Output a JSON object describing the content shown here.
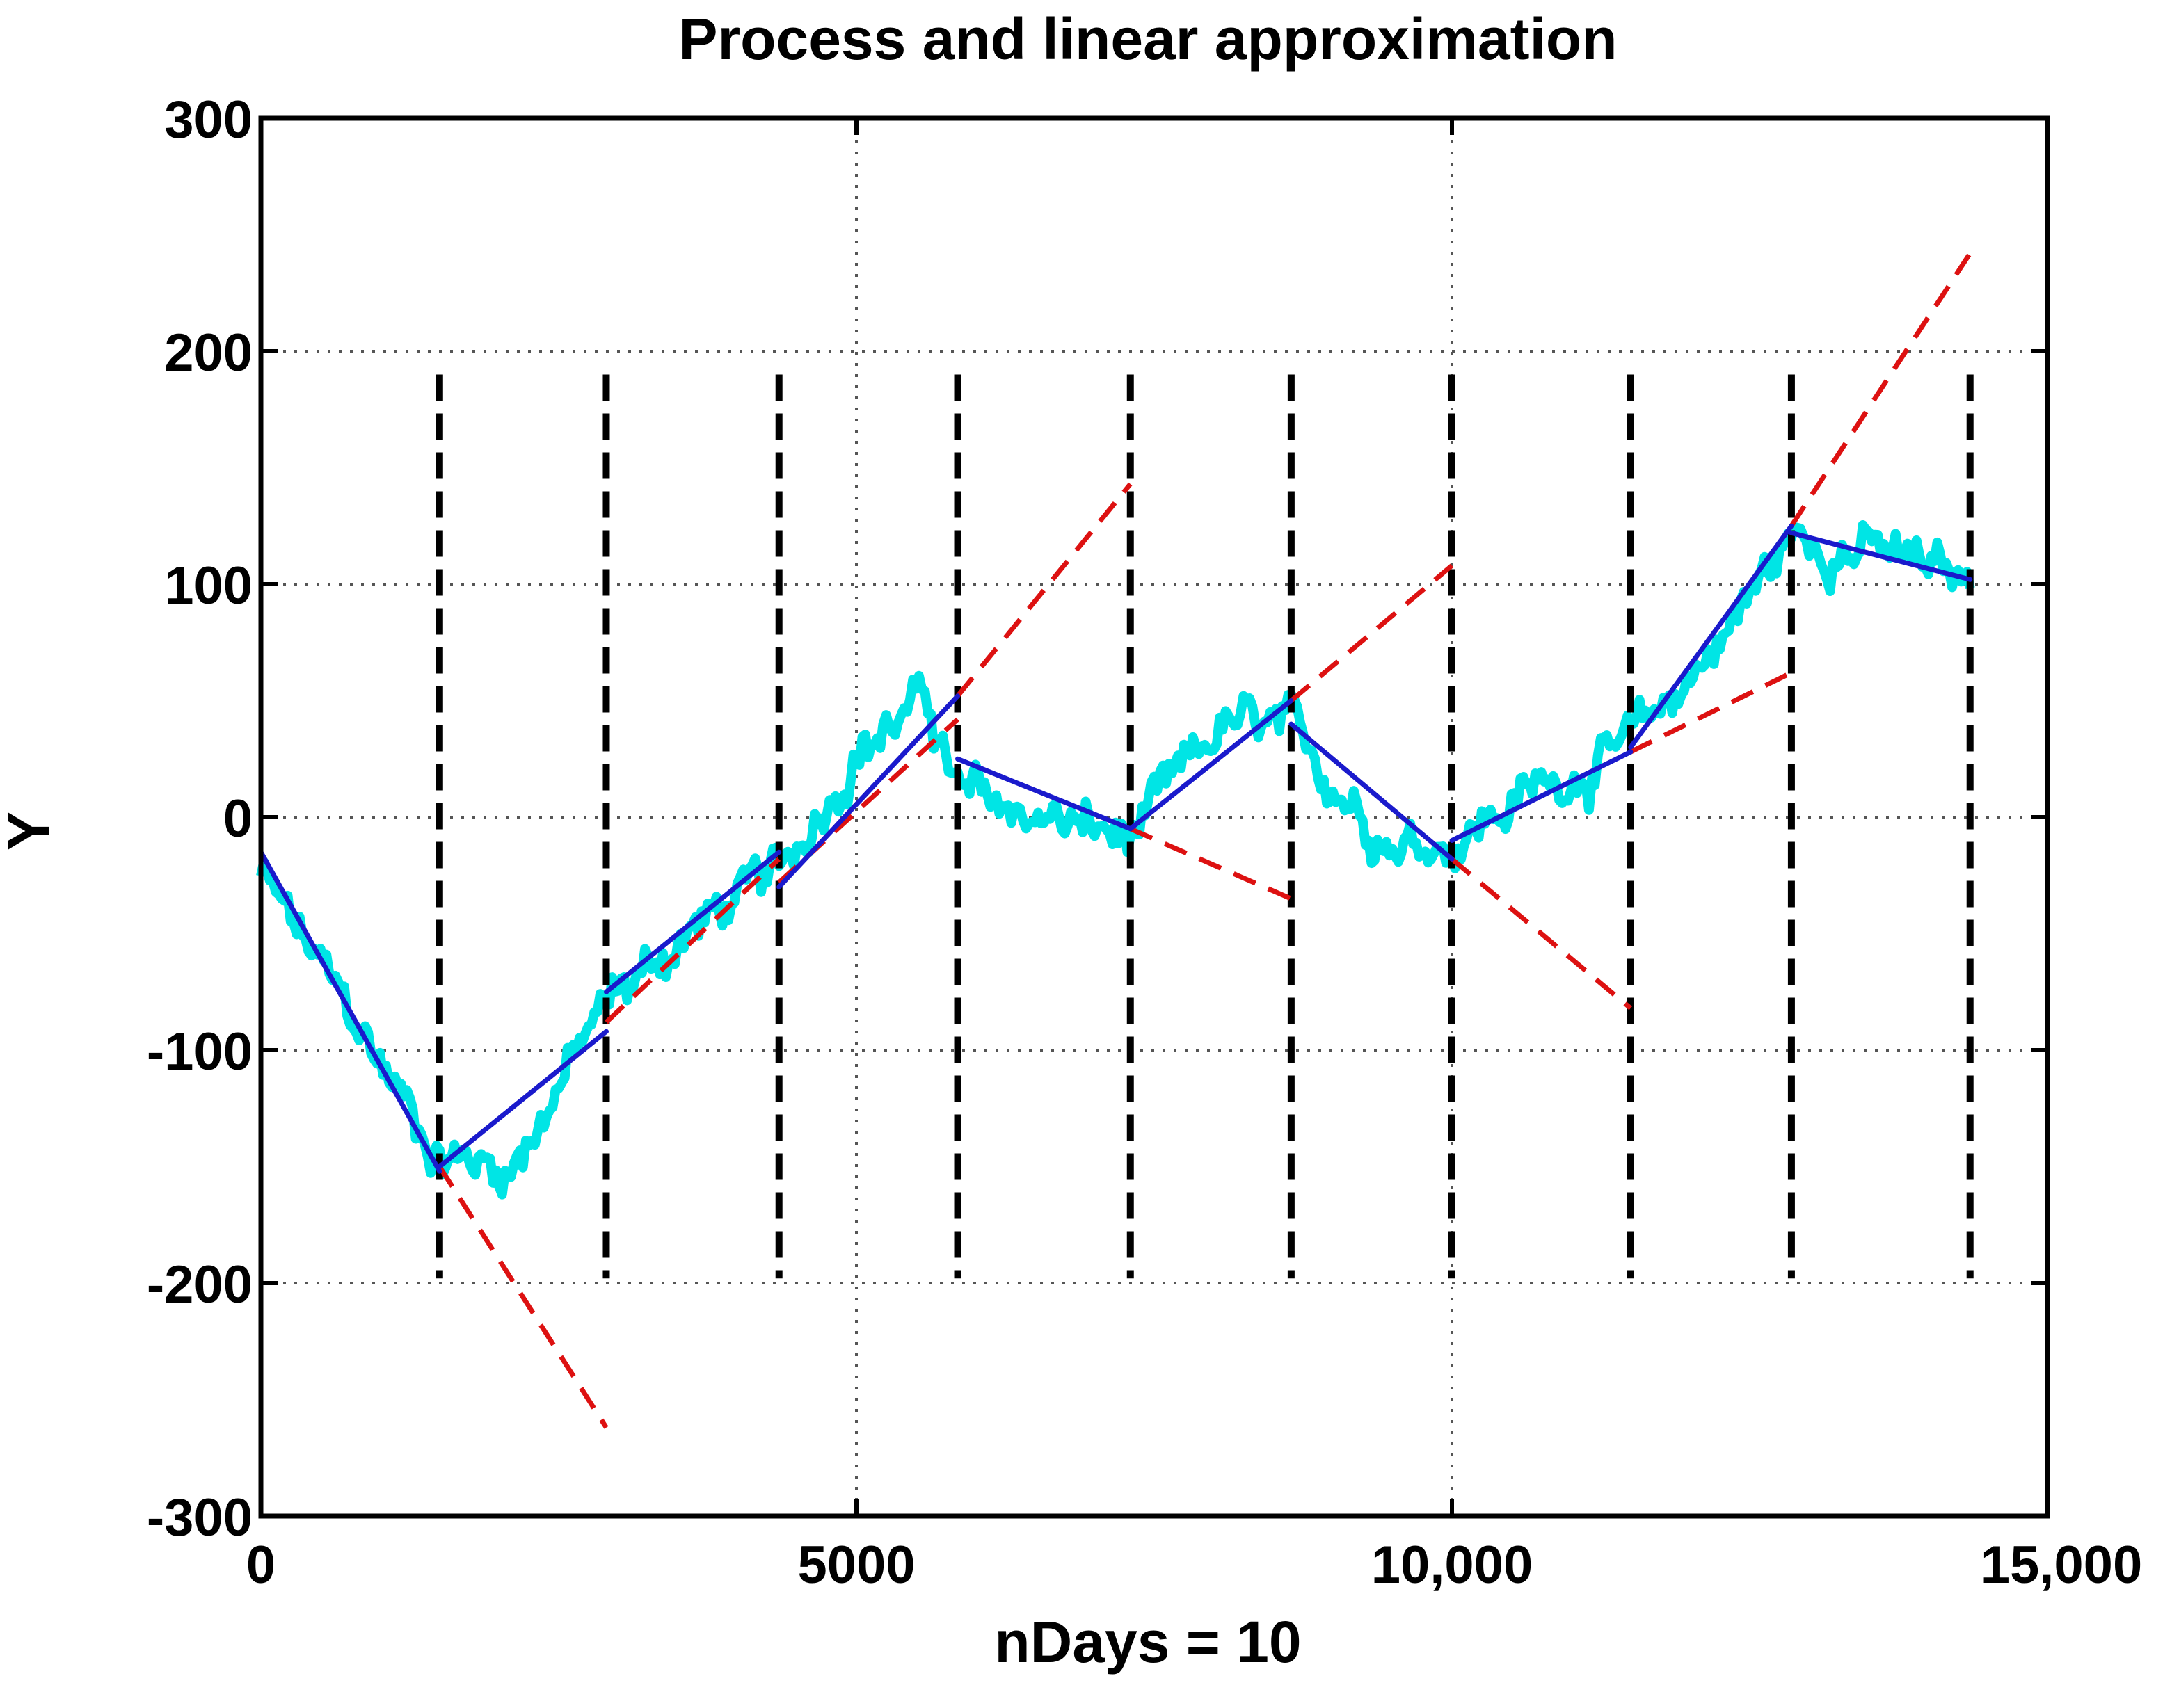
{
  "chart_data": {
    "type": "line",
    "title": "Process and linear approximation",
    "xlabel": "nDays = 10",
    "ylabel": "Y",
    "xlim": [
      0,
      15000
    ],
    "ylim": [
      -300,
      300
    ],
    "x_ticks": [
      0,
      5000,
      10000,
      15000
    ],
    "x_tick_labels": [
      "0",
      "5000",
      "10,000",
      "15,000"
    ],
    "y_ticks": [
      -300,
      -200,
      -100,
      0,
      100,
      200,
      300
    ],
    "y_tick_labels": [
      "-300",
      "-200",
      "-100",
      "0",
      "100",
      "200",
      "300"
    ],
    "grid": true,
    "colors": {
      "process": "#00e5e5",
      "approximation": "#1a1acc",
      "extension": "#dd1111",
      "boundary": "#000000",
      "grid": "#555555"
    },
    "segment_boundaries": [
      1500,
      2900,
      4350,
      5850,
      7300,
      8650,
      10000,
      11500,
      12850,
      14350
    ],
    "series": [
      {
        "name": "process",
        "style": "cyan noisy line",
        "anchors": [
          {
            "x": 0,
            "y": -25
          },
          {
            "x": 1500,
            "y": -145
          },
          {
            "x": 2100,
            "y": -150
          },
          {
            "x": 2900,
            "y": -80
          },
          {
            "x": 3700,
            "y": -45
          },
          {
            "x": 4350,
            "y": -25
          },
          {
            "x": 5000,
            "y": 30
          },
          {
            "x": 5600,
            "y": 50
          },
          {
            "x": 5850,
            "y": 10
          },
          {
            "x": 7300,
            "y": -10
          },
          {
            "x": 8100,
            "y": 40
          },
          {
            "x": 8650,
            "y": 35
          },
          {
            "x": 9500,
            "y": -10
          },
          {
            "x": 10000,
            "y": -10
          },
          {
            "x": 10800,
            "y": 15
          },
          {
            "x": 11500,
            "y": 30
          },
          {
            "x": 12300,
            "y": 80
          },
          {
            "x": 12850,
            "y": 120
          },
          {
            "x": 13500,
            "y": 115
          },
          {
            "x": 14350,
            "y": 100
          }
        ]
      },
      {
        "name": "linear approximation",
        "style": "blue solid",
        "segments": [
          [
            [
              0,
              -15
            ],
            [
              1500,
              -152
            ]
          ],
          [
            [
              1500,
              -150
            ],
            [
              2900,
              -92
            ]
          ],
          [
            [
              2900,
              -75
            ],
            [
              4350,
              -15
            ]
          ],
          [
            [
              4350,
              -30
            ],
            [
              5850,
              52
            ]
          ],
          [
            [
              5850,
              25
            ],
            [
              7300,
              -5
            ]
          ],
          [
            [
              7300,
              -5
            ],
            [
              8650,
              50
            ]
          ],
          [
            [
              8650,
              40
            ],
            [
              10000,
              -18
            ]
          ],
          [
            [
              10000,
              -10
            ],
            [
              11500,
              28
            ]
          ],
          [
            [
              11500,
              30
            ],
            [
              12850,
              125
            ]
          ],
          [
            [
              12850,
              122
            ],
            [
              14350,
              102
            ]
          ]
        ]
      },
      {
        "name": "extrapolation",
        "style": "red dashed",
        "segments": [
          [
            [
              1500,
              -150
            ],
            [
              2900,
              -262
            ]
          ],
          [
            [
              2900,
              -88
            ],
            [
              4350,
              -18
            ]
          ],
          [
            [
              4350,
              -28
            ],
            [
              5850,
              42
            ]
          ],
          [
            [
              5850,
              52
            ],
            [
              7300,
              143
            ]
          ],
          [
            [
              7300,
              -5
            ],
            [
              8650,
              -35
            ]
          ],
          [
            [
              8650,
              50
            ],
            [
              10000,
              108
            ]
          ],
          [
            [
              10000,
              -18
            ],
            [
              11500,
              -82
            ]
          ],
          [
            [
              11500,
              28
            ],
            [
              12850,
              62
            ]
          ],
          [
            [
              12850,
              125
            ],
            [
              14350,
              242
            ]
          ]
        ]
      }
    ]
  }
}
